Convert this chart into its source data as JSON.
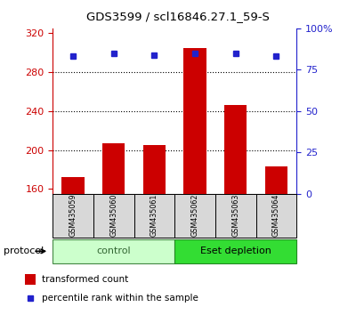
{
  "title": "GDS3599 / scl16846.27.1_59-S",
  "samples": [
    "GSM435059",
    "GSM435060",
    "GSM435061",
    "GSM435062",
    "GSM435063",
    "GSM435064"
  ],
  "groups": [
    "control",
    "control",
    "control",
    "Eset depletion",
    "Eset depletion",
    "Eset depletion"
  ],
  "transformed_counts": [
    172,
    207,
    205,
    305,
    246,
    183
  ],
  "percentile_ranks": [
    83,
    85,
    84,
    85,
    85,
    83
  ],
  "ylim_left": [
    155,
    325
  ],
  "ylim_right": [
    0,
    100
  ],
  "yticks_left": [
    160,
    200,
    240,
    280,
    320
  ],
  "yticks_right": [
    0,
    25,
    50,
    75,
    100
  ],
  "bar_color": "#cc0000",
  "dot_color": "#2222cc",
  "bar_width": 0.55,
  "group_colors": {
    "control": "#ccffcc",
    "Eset depletion": "#33dd33"
  },
  "group_label_ctrl_color": "#336633",
  "group_label_eset_color": "#006600",
  "legend_bar_label": "transformed count",
  "legend_dot_label": "percentile rank within the sample",
  "protocol_label": "protocol",
  "left_tick_color": "#cc0000",
  "right_tick_color": "#2222cc",
  "grid_color": "#000000",
  "sample_box_color": "#d8d8d8",
  "plot_bg_color": "#ffffff",
  "right_axis_pct_label": "100%"
}
